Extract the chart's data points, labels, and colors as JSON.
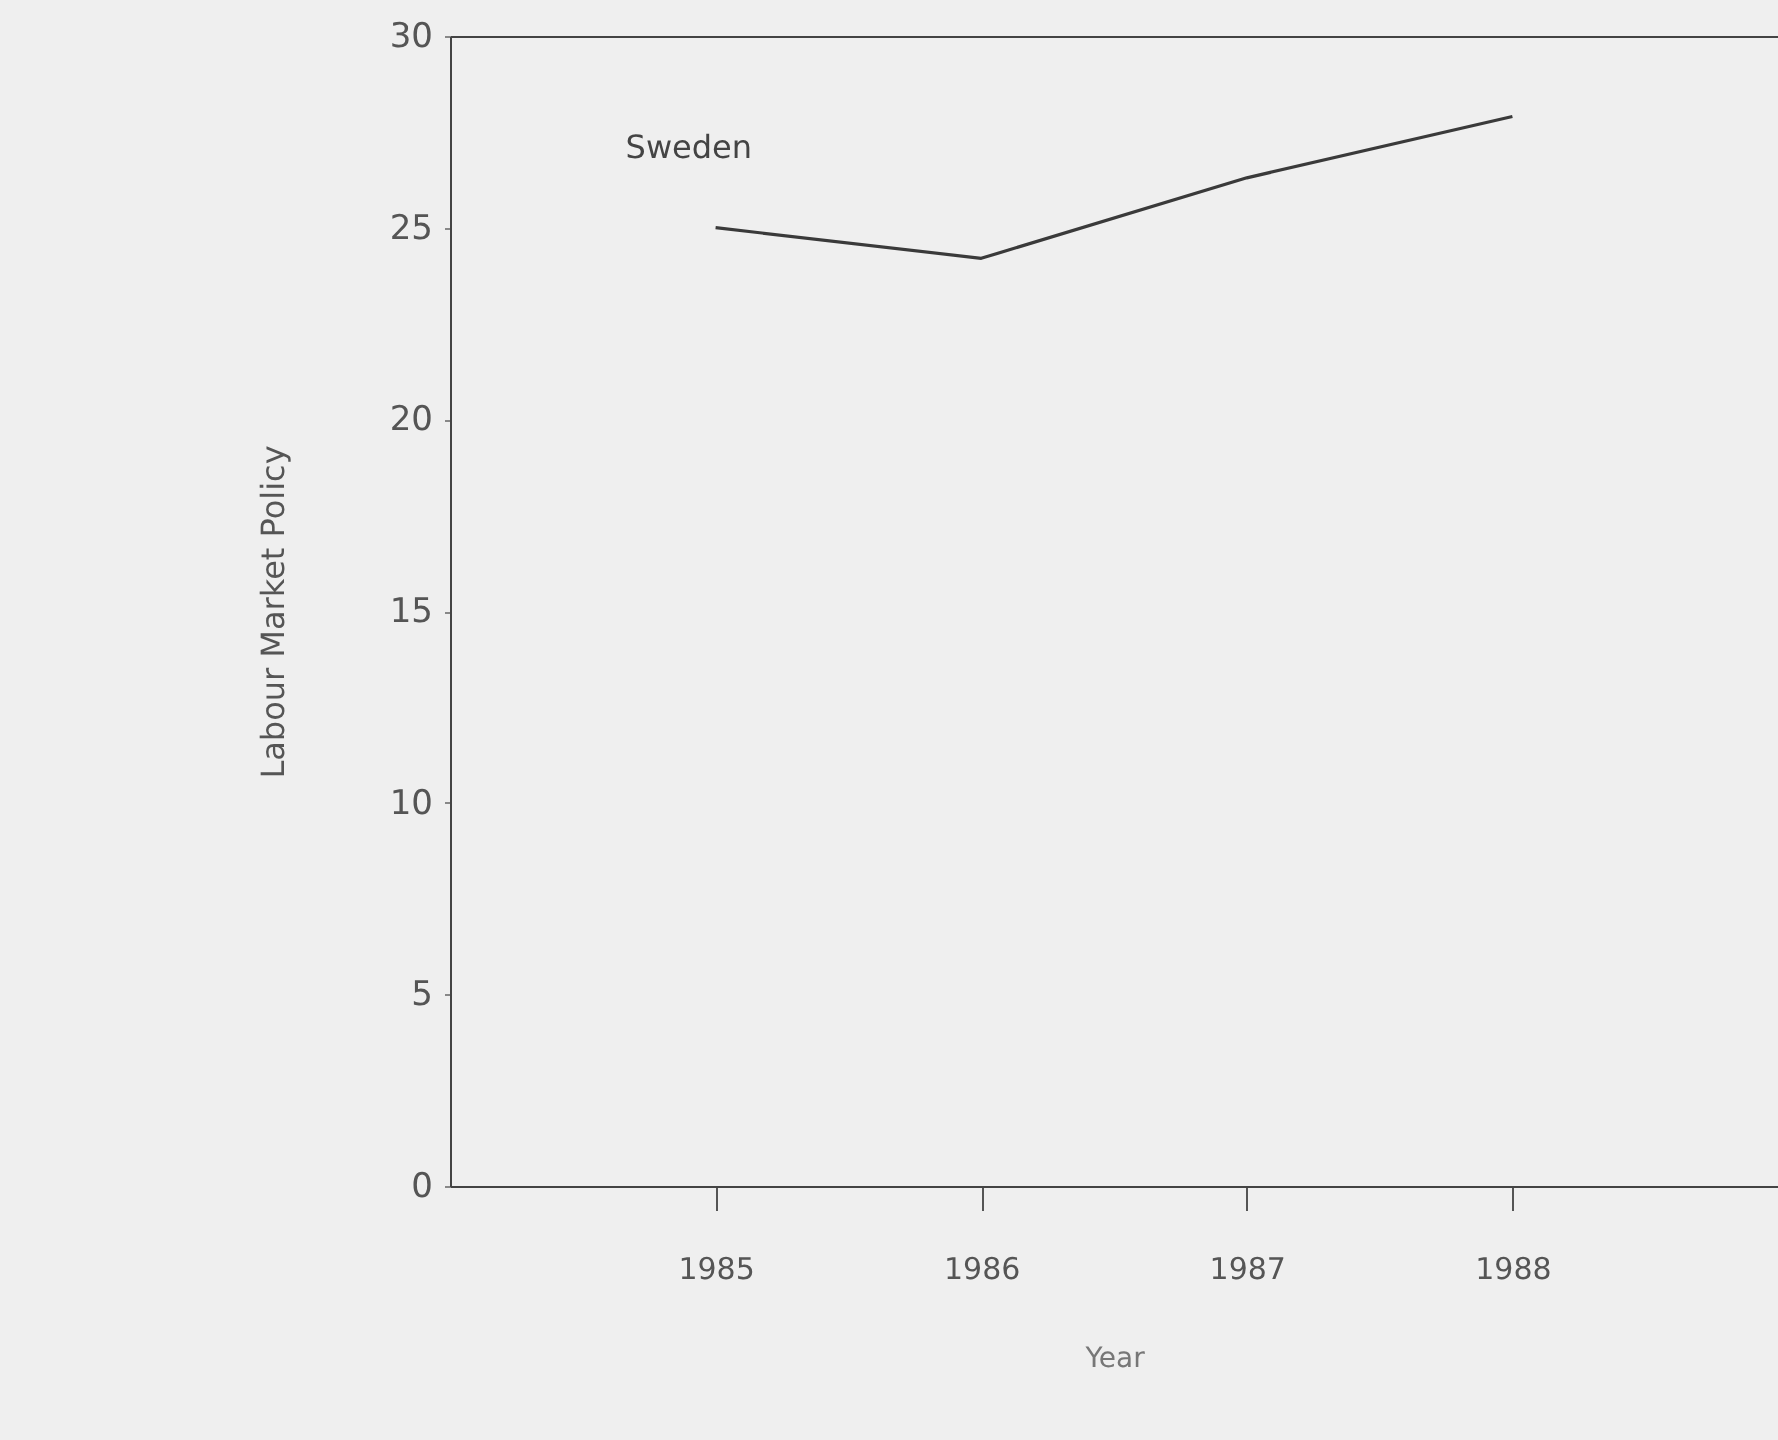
{
  "chart_data": {
    "type": "line",
    "xlabel": "Year",
    "ylabel": "Labour Market Policy",
    "x": [
      1985,
      1986,
      1987,
      1988
    ],
    "series": [
      {
        "name": "Sweden",
        "color": "#3a3a3a",
        "values": [
          25.0,
          24.2,
          26.3,
          27.9
        ]
      }
    ],
    "xlim": [
      1984,
      1989
    ],
    "xticks": [
      1985,
      1986,
      1987,
      1988
    ],
    "ylim": [
      0,
      30
    ],
    "yticks": [
      0,
      5,
      10,
      15,
      20,
      25,
      30
    ],
    "grid": false,
    "marker": "none",
    "line_style": "solid"
  }
}
